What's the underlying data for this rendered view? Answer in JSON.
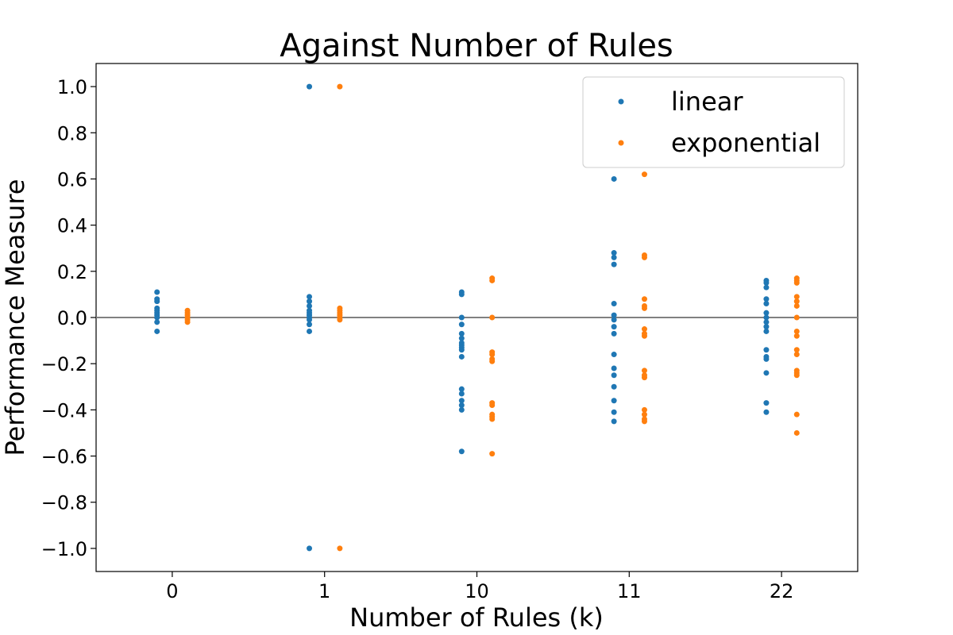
{
  "chart_data": {
    "type": "scatter",
    "title": "Against Number of Rules",
    "xlabel": "Number of Rules (k)",
    "ylabel": "Performance Measure",
    "categories": [
      "0",
      "1",
      "10",
      "11",
      "22"
    ],
    "ylim": [
      -1.1,
      1.1
    ],
    "yticks": [
      1.0,
      0.8,
      0.6,
      0.4,
      0.2,
      0.0,
      -0.2,
      -0.4,
      -0.6,
      -0.8,
      -1.0
    ],
    "ytick_labels": [
      "1.0",
      "0.8",
      "0.6",
      "0.4",
      "0.2",
      "0.0",
      "−0.2",
      "−0.4",
      "−0.6",
      "−0.8",
      "−1.0"
    ],
    "reference_line": 0.0,
    "reference_line_color": "#808080",
    "legend_position": "upper-right",
    "series": [
      {
        "name": "linear",
        "color": "#1f77b4",
        "offset": -0.1,
        "values": [
          [
            0.11,
            0.08,
            0.07,
            0.04,
            0.03,
            0.02,
            0.01,
            0.0,
            -0.02,
            -0.06
          ],
          [
            1.0,
            0.09,
            0.07,
            0.05,
            0.03,
            0.02,
            0.01,
            0.0,
            -0.01,
            -0.03,
            -0.06,
            -1.0
          ],
          [
            0.1,
            0.11,
            0.0,
            -0.03,
            -0.07,
            -0.09,
            -0.11,
            -0.12,
            -0.13,
            -0.14,
            -0.17,
            -0.31,
            -0.33,
            -0.36,
            -0.38,
            -0.4,
            -0.58
          ],
          [
            0.6,
            0.28,
            0.26,
            0.23,
            0.06,
            0.01,
            -0.01,
            -0.04,
            -0.07,
            -0.16,
            -0.22,
            -0.25,
            -0.3,
            -0.36,
            -0.41,
            -0.45
          ],
          [
            0.16,
            0.15,
            0.13,
            0.08,
            0.06,
            0.02,
            0.0,
            -0.02,
            -0.04,
            -0.06,
            -0.14,
            -0.17,
            -0.18,
            -0.24,
            -0.37,
            -0.41
          ]
        ]
      },
      {
        "name": "exponential",
        "color": "#ff7f0e",
        "offset": 0.1,
        "values": [
          [
            0.03,
            0.02,
            0.01,
            0.0,
            -0.01,
            -0.02
          ],
          [
            1.0,
            0.04,
            0.03,
            0.02,
            0.01,
            0.0,
            -0.01,
            -1.0
          ],
          [
            0.17,
            0.16,
            0.0,
            -0.15,
            -0.16,
            -0.18,
            -0.19,
            -0.37,
            -0.38,
            -0.42,
            -0.43,
            -0.44,
            -0.59
          ],
          [
            0.62,
            0.27,
            0.26,
            0.08,
            0.05,
            0.04,
            -0.05,
            -0.07,
            -0.08,
            -0.23,
            -0.25,
            -0.26,
            -0.4,
            -0.42,
            -0.44,
            -0.45
          ],
          [
            0.17,
            0.16,
            0.15,
            0.09,
            0.07,
            0.05,
            0.0,
            -0.06,
            -0.08,
            -0.14,
            -0.16,
            -0.23,
            -0.24,
            -0.25,
            -0.42,
            -0.5
          ]
        ]
      }
    ]
  }
}
